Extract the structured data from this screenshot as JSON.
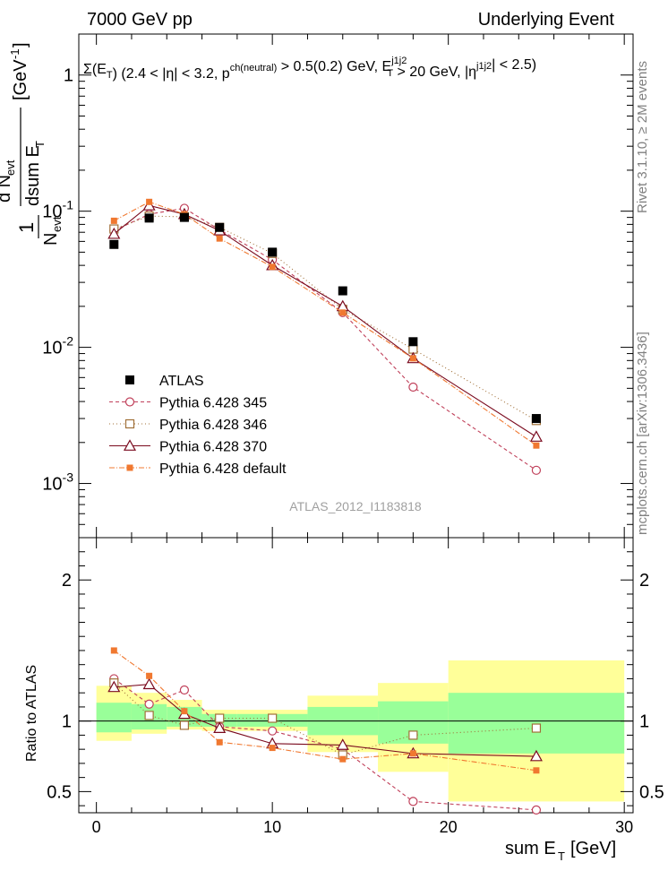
{
  "header": {
    "left": "7000 GeV pp",
    "right": "Underlying Event"
  },
  "side": {
    "rivet": "Rivet 3.1.10, ≥ 2M events",
    "mcplots": "mcplots.cern.ch [arXiv:1306.3436]"
  },
  "analysis_id": "ATLAS_2012_I1183818",
  "chart_data": {
    "type": "scatter",
    "title": "Σ(E_T) (2.4 < |η| < 3.2, p^ch(neutral) > 0.5(0.2) GeV, E_T^j1j2 > 20 GeV, |η^j1j2| < 2.5)",
    "xlabel": "sum E_T [GeV]",
    "ylabel": "1/N_evt dN_evt/dsum E_T [GeV^-1]",
    "ratio_ylabel": "Ratio to ATLAS",
    "xlim": [
      -1,
      30.5
    ],
    "ylim_log": [
      0.0004,
      2
    ],
    "ratio_ylim": [
      0.35,
      2.3
    ],
    "x_ticks": [
      0,
      10,
      20,
      30
    ],
    "y_ticks": [
      {
        "v": 1,
        "label": "1"
      },
      {
        "v": 0.1,
        "label": "10^-1"
      },
      {
        "v": 0.01,
        "label": "10^-2"
      },
      {
        "v": 0.001,
        "label": "10^-3"
      }
    ],
    "ratio_ticks": [
      0.5,
      1,
      2
    ],
    "x_bins": [
      [
        0,
        2
      ],
      [
        2,
        4
      ],
      [
        4,
        6
      ],
      [
        6,
        8
      ],
      [
        8,
        12
      ],
      [
        12,
        16
      ],
      [
        16,
        20
      ],
      [
        20,
        30
      ]
    ],
    "x": [
      1,
      3,
      5,
      7,
      10,
      14,
      18,
      25
    ],
    "data": {
      "name": "ATLAS",
      "values": [
        0.057,
        0.089,
        0.09,
        0.076,
        0.05,
        0.026,
        0.011,
        0.003
      ]
    },
    "band_inner": [
      [
        0.92,
        1.13
      ],
      [
        0.94,
        1.12
      ],
      [
        0.96,
        1.1
      ],
      [
        0.96,
        1.05
      ],
      [
        0.96,
        1.05
      ],
      [
        0.9,
        1.1
      ],
      [
        0.84,
        1.14
      ],
      [
        0.77,
        1.2
      ]
    ],
    "band_outer": [
      [
        0.86,
        1.25
      ],
      [
        0.91,
        1.2
      ],
      [
        0.94,
        1.15
      ],
      [
        0.93,
        1.08
      ],
      [
        0.93,
        1.08
      ],
      [
        0.78,
        1.18
      ],
      [
        0.64,
        1.27
      ],
      [
        0.43,
        1.43
      ]
    ],
    "series": [
      {
        "name": "Pythia 6.428 345",
        "color": "#c0405a",
        "marker": "circle",
        "dash": "4,3",
        "values": [
          0.072,
          0.095,
          0.105,
          0.073,
          0.044,
          0.018,
          0.0051,
          0.00125
        ],
        "ratio": [
          1.3,
          1.12,
          1.22,
          0.96,
          0.93,
          0.8,
          0.43,
          0.37
        ]
      },
      {
        "name": "Pythia 6.428 346",
        "color": "#a07038",
        "marker": "square",
        "dash": "1,3",
        "values": [
          0.074,
          0.092,
          0.091,
          0.076,
          0.049,
          0.019,
          0.0097,
          0.0029
        ],
        "ratio": [
          1.27,
          1.04,
          0.97,
          1.02,
          1.02,
          0.76,
          0.9,
          0.95
        ]
      },
      {
        "name": "Pythia 6.428 370",
        "color": "#7a0a1e",
        "marker": "triangle",
        "dash": "",
        "values": [
          0.068,
          0.11,
          0.095,
          0.072,
          0.04,
          0.02,
          0.0083,
          0.0022
        ],
        "ratio": [
          1.24,
          1.26,
          1.05,
          0.95,
          0.84,
          0.83,
          0.77,
          0.75
        ]
      },
      {
        "name": "Pythia 6.428 default",
        "color": "#f07830",
        "marker": "filledsquare",
        "dash": "6,2,1,2",
        "values": [
          0.085,
          0.117,
          0.095,
          0.063,
          0.039,
          0.018,
          0.0083,
          0.0019
        ],
        "ratio": [
          1.5,
          1.32,
          1.07,
          0.85,
          0.81,
          0.73,
          0.77,
          0.65
        ]
      }
    ]
  }
}
